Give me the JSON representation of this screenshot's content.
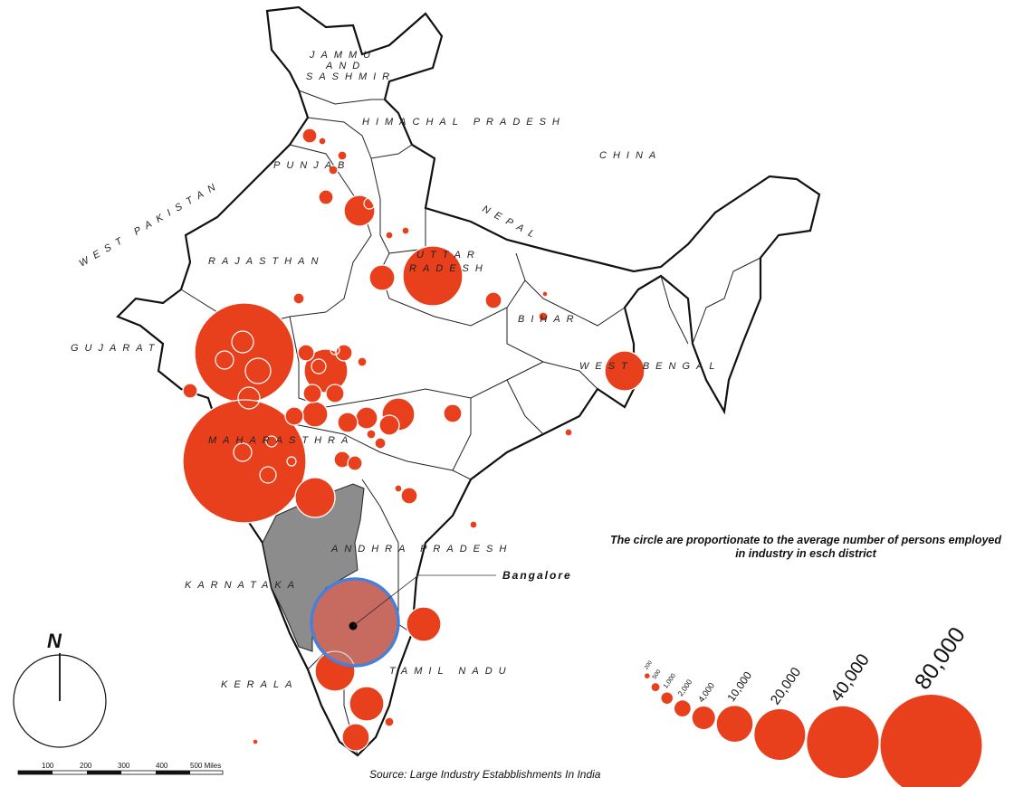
{
  "legend": {
    "title_line1": "The circle are proportionate to the average number of persons employed",
    "title_line2": "in industry in esch district",
    "sizes": [
      {
        "label": "200",
        "value": 200
      },
      {
        "label": "500",
        "value": 500
      },
      {
        "label": "1,000",
        "value": 1000
      },
      {
        "label": "2,000",
        "value": 2000
      },
      {
        "label": "4,000",
        "value": 4000
      },
      {
        "label": "10,000",
        "value": 10000
      },
      {
        "label": "20,000",
        "value": 20000
      },
      {
        "label": "40,000",
        "value": 40000
      },
      {
        "label": "80,000",
        "value": 80000
      }
    ]
  },
  "source": "Source: Large Industry Estabblishments In India",
  "callout": {
    "label": "Bangalore"
  },
  "north_arrow": {
    "letter": "N"
  },
  "scale_bar": {
    "labels": [
      "100",
      "200",
      "300",
      "400",
      "500 Miles"
    ]
  },
  "regions": {
    "jammu1": "JAMMU",
    "jammu2": "AND",
    "jammu3": "SASHMIR",
    "himachal": "HIMACHAL PRADESH",
    "china": "CHINA",
    "west_pakistan": "WEST PAKISTAN",
    "punjab": "PUNJAB",
    "nepal": "NEPAL",
    "rajasthan": "RAJASTHAN",
    "uttar1": "UTTAR",
    "uttar2": "RADESH",
    "bihar": "BIHAR",
    "gujarat": "GUJARAT",
    "west_bengal": "WEST BENGAL",
    "maharashtra": "MAHARASTHRA",
    "andhra": "ANDHRA PRADESH",
    "karnataka": "KARNATAKA",
    "tamil_nadu": "TAMIL NADU",
    "kerala": "KERALA"
  },
  "colors": {
    "circle_fill": "#e8401c",
    "circle_stroke": "#ffffff",
    "highlight_state": "#8c8c8c",
    "highlight_ring": "#4a7fd6",
    "boundary": "#111111"
  }
}
